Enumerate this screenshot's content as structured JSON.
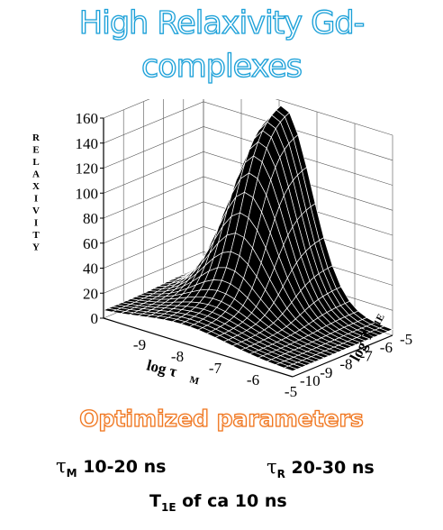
{
  "title": "High Relaxivity Gd-complexes",
  "subtitle": "Optimized parameters",
  "params": [
    {
      "symbol": "τ",
      "sub": "M",
      "value": " 10-20 ns"
    },
    {
      "symbol": "τ",
      "sub": "R",
      "value": " 20-30 ns"
    },
    {
      "symbol": "T",
      "sub": "1E",
      "value": " of ca 10 ns"
    }
  ],
  "chart_data": {
    "type": "surface",
    "zlabel": "RELAXIVITY",
    "z_ticks": [
      "0",
      "20",
      "40",
      "60",
      "80",
      "100",
      "120",
      "140",
      "160"
    ],
    "zlim": [
      0,
      160
    ],
    "x_axis": {
      "label": "log τ",
      "label_sub": "M",
      "ticks": [
        "-9",
        "-8",
        "-7",
        "-6",
        "-5"
      ],
      "range": [
        -10,
        -5
      ]
    },
    "y_axis": {
      "label": "log T",
      "label_sub": "1E",
      "ticks": [
        "-10",
        "-9",
        "-8",
        "-7",
        "-6",
        "-5"
      ],
      "range": [
        -10,
        -5
      ]
    },
    "peak": {
      "log_tauM": -7.9,
      "log_T1E": -5.2,
      "relaxivity": 152
    },
    "colors": {
      "surface": "#000000",
      "mesh": "#ffffff",
      "axes": "#000000"
    }
  }
}
